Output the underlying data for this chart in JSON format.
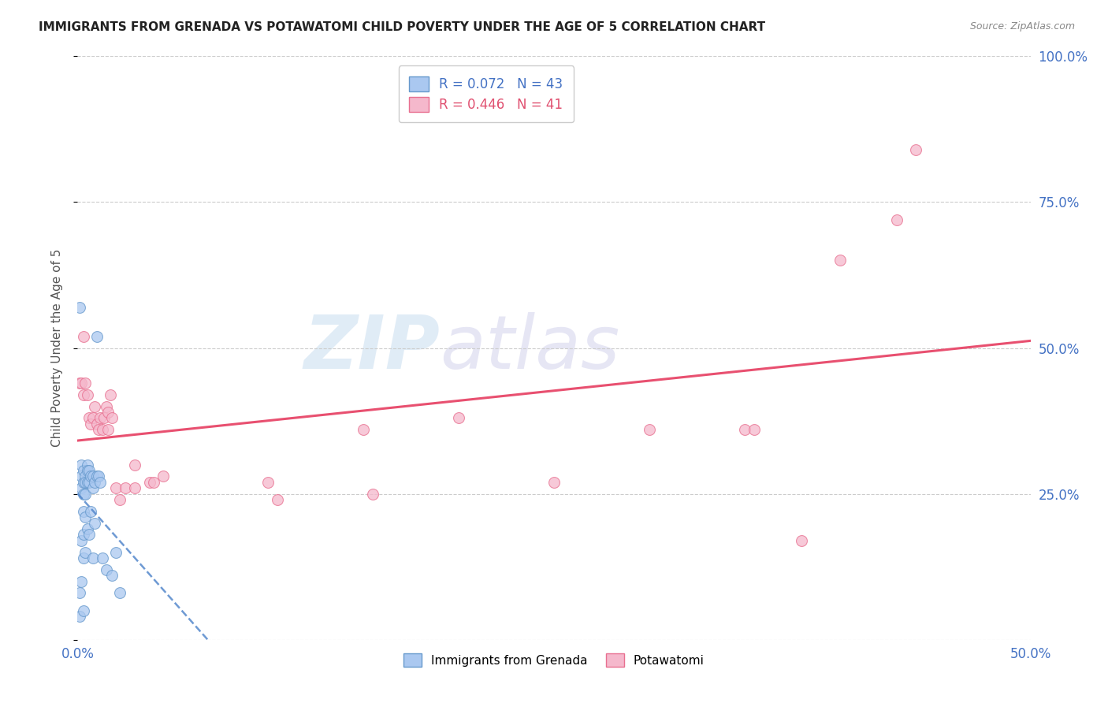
{
  "title": "IMMIGRANTS FROM GRENADA VS POTAWATOMI CHILD POVERTY UNDER THE AGE OF 5 CORRELATION CHART",
  "source": "Source: ZipAtlas.com",
  "ylabel": "Child Poverty Under the Age of 5",
  "xlim": [
    0.0,
    0.5
  ],
  "ylim": [
    0.0,
    1.0
  ],
  "watermark": "ZIPatlas",
  "series1_color": "#aac8f0",
  "series2_color": "#f5b8cc",
  "series1_edge": "#6699cc",
  "series2_edge": "#e87090",
  "line1_color": "#5588cc",
  "line2_color": "#e85070",
  "grenada_x": [
    0.001,
    0.001,
    0.001,
    0.002,
    0.002,
    0.002,
    0.002,
    0.002,
    0.003,
    0.003,
    0.003,
    0.003,
    0.003,
    0.003,
    0.003,
    0.004,
    0.004,
    0.004,
    0.004,
    0.004,
    0.005,
    0.005,
    0.005,
    0.005,
    0.006,
    0.006,
    0.006,
    0.007,
    0.007,
    0.008,
    0.008,
    0.008,
    0.009,
    0.009,
    0.01,
    0.01,
    0.011,
    0.012,
    0.013,
    0.015,
    0.018,
    0.02,
    0.022
  ],
  "grenada_y": [
    0.57,
    0.04,
    0.08,
    0.3,
    0.28,
    0.26,
    0.17,
    0.1,
    0.29,
    0.27,
    0.25,
    0.22,
    0.18,
    0.14,
    0.05,
    0.28,
    0.27,
    0.25,
    0.21,
    0.15,
    0.3,
    0.29,
    0.27,
    0.19,
    0.29,
    0.27,
    0.18,
    0.28,
    0.22,
    0.28,
    0.26,
    0.14,
    0.27,
    0.2,
    0.52,
    0.28,
    0.28,
    0.27,
    0.14,
    0.12,
    0.11,
    0.15,
    0.08
  ],
  "potawatomi_x": [
    0.001,
    0.002,
    0.003,
    0.003,
    0.004,
    0.005,
    0.006,
    0.007,
    0.008,
    0.009,
    0.01,
    0.011,
    0.012,
    0.013,
    0.014,
    0.015,
    0.016,
    0.016,
    0.017,
    0.018,
    0.02,
    0.022,
    0.025,
    0.03,
    0.03,
    0.038,
    0.04,
    0.045,
    0.1,
    0.105,
    0.15,
    0.155,
    0.2,
    0.25,
    0.3,
    0.35,
    0.355,
    0.38,
    0.4,
    0.43,
    0.44
  ],
  "potawatomi_y": [
    0.44,
    0.44,
    0.52,
    0.42,
    0.44,
    0.42,
    0.38,
    0.37,
    0.38,
    0.4,
    0.37,
    0.36,
    0.38,
    0.36,
    0.38,
    0.4,
    0.39,
    0.36,
    0.42,
    0.38,
    0.26,
    0.24,
    0.26,
    0.26,
    0.3,
    0.27,
    0.27,
    0.28,
    0.27,
    0.24,
    0.36,
    0.25,
    0.38,
    0.27,
    0.36,
    0.36,
    0.36,
    0.17,
    0.65,
    0.72,
    0.84
  ]
}
